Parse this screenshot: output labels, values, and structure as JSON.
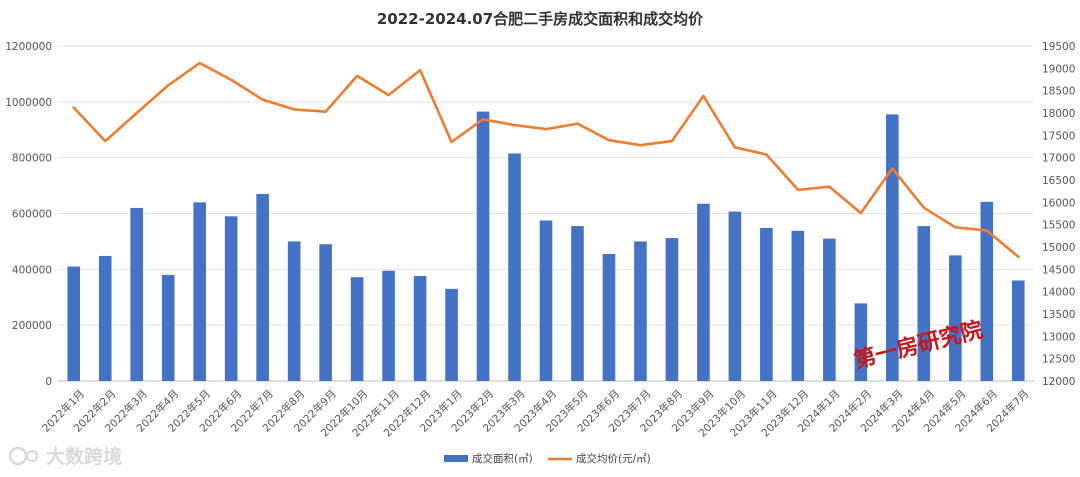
{
  "chart_data": {
    "type": "bar",
    "title": "2022-2024.07合肥二手房成交面积和成交均价",
    "categories": [
      "2022年1月",
      "2022年2月",
      "2022年3月",
      "2022年4月",
      "2022年5月",
      "2022年6月",
      "2022年7月",
      "2022年8月",
      "2022年9月",
      "2022年10月",
      "2022年11月",
      "2022年12月",
      "2023年1月",
      "2023年2月",
      "2023年3月",
      "2023年4月",
      "2023年5月",
      "2023年6月",
      "2023年7月",
      "2023年8月",
      "2023年9月",
      "2023年10月",
      "2023年11月",
      "2023年12月",
      "2024年1月",
      "2024年2月",
      "2024年3月",
      "2024年4月",
      "2024年5月",
      "2024年6月",
      "2024年7月"
    ],
    "series": [
      {
        "name": "成交面积(㎡)",
        "type": "bar",
        "axis": "left",
        "color": "#4472c4",
        "values": [
          410000,
          448000,
          620000,
          380000,
          640000,
          590000,
          670000,
          500000,
          490000,
          372000,
          395000,
          376000,
          330000,
          965000,
          815000,
          575000,
          555000,
          455000,
          500000,
          512000,
          635000,
          607000,
          548000,
          538000,
          510000,
          278000,
          955000,
          555000,
          450000,
          642000,
          360000
        ]
      },
      {
        "name": "成交均价(元/㎡)",
        "type": "line",
        "axis": "right",
        "color": "#ed7d31",
        "values": [
          18120,
          17370,
          18000,
          18620,
          19120,
          18740,
          18300,
          18080,
          18030,
          18830,
          18400,
          18960,
          17350,
          17860,
          17730,
          17640,
          17760,
          17390,
          17280,
          17370,
          18380,
          17230,
          17070,
          16280,
          16350,
          15760,
          16760,
          15880,
          15440,
          15370,
          14780
        ]
      }
    ],
    "y_left": {
      "min": 0,
      "max": 1200000,
      "ticks": [
        "0",
        "200000",
        "400000",
        "600000",
        "800000",
        "1000000",
        "1200000"
      ]
    },
    "y_right": {
      "min": 12000,
      "max": 19500,
      "ticks": [
        "12000",
        "12500",
        "13000",
        "13500",
        "14000",
        "14500",
        "15000",
        "15500",
        "16000",
        "16500",
        "17000",
        "17500",
        "18000",
        "18500",
        "19000",
        "19500"
      ]
    },
    "grid": true,
    "legend_position": "bottom"
  },
  "watermark": {
    "stamp_text": "第一房研究院",
    "logo_text": "大数跨境"
  }
}
